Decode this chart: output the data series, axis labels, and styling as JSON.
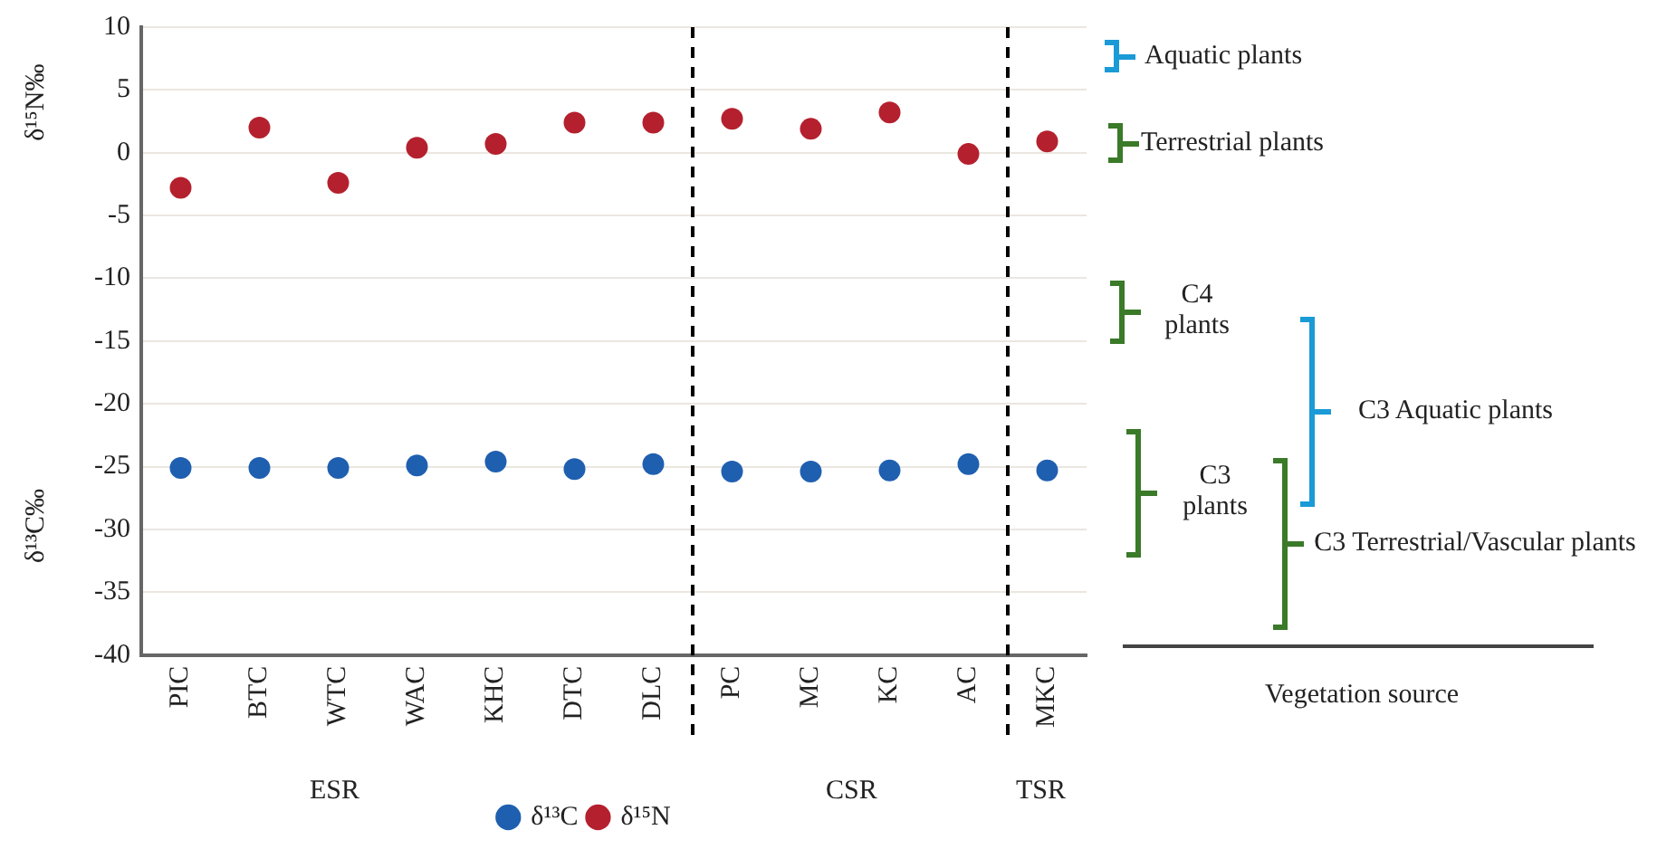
{
  "chart_data": {
    "type": "scatter",
    "ylabel": "δ¹⁵N‰",
    "categories": [
      "PIC",
      "BTC",
      "WTC",
      "WAC",
      "KHC",
      "DTC",
      "DLC",
      "PC",
      "MC",
      "KC",
      "AC",
      "MKC"
    ],
    "series": [
      {
        "name": "δ¹³C",
        "color": "#1f5fb0",
        "values": [
          -25.1,
          -25.1,
          -25.1,
          -24.9,
          -24.6,
          -25.2,
          -24.8,
          -25.4,
          -25.4,
          -25.3,
          -24.8,
          -25.3
        ]
      },
      {
        "name": "δ¹⁵N",
        "color": "#b5202e",
        "values": [
          -2.8,
          2.0,
          -2.4,
          0.4,
          0.7,
          2.4,
          2.4,
          2.7,
          1.9,
          3.2,
          -0.1,
          0.9
        ]
      }
    ],
    "ylim": [
      -40,
      10
    ],
    "yticks": [
      10,
      5,
      0,
      -5,
      -10,
      -15,
      -20,
      -25,
      -30,
      -35,
      -40
    ],
    "grid": "y",
    "legend": "bottom",
    "marker": "circle",
    "annotations": [
      "ESR",
      "CSR",
      "TSR",
      "δ¹³C‰",
      "Aquatic plants",
      "Terrestrial plants",
      "C4 plants",
      "C3 plants",
      "C3 Terrestrial/Vascular plants",
      "C3 Aquatic plants",
      "Vegetation source"
    ]
  }
}
